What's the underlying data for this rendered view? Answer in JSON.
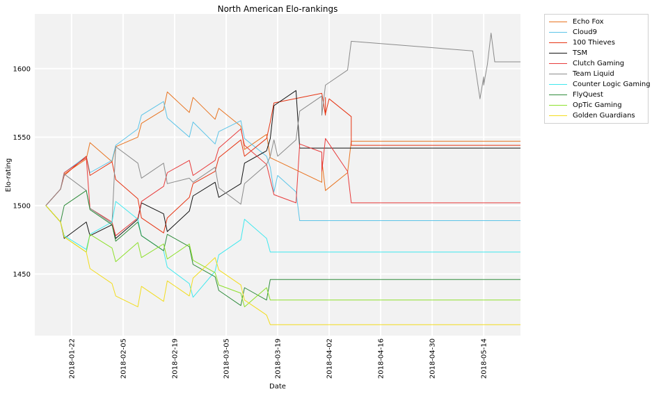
{
  "chart_data": {
    "type": "line",
    "title": "North American Elo-rankings",
    "xlabel": "Date",
    "ylabel": "Elo-rating",
    "x_range": [
      "2018-01-12",
      "2018-05-24"
    ],
    "ylim": [
      1405,
      1640
    ],
    "x_ticks": [
      "2018-01-22",
      "2018-02-05",
      "2018-02-19",
      "2018-03-05",
      "2018-03-19",
      "2018-04-02",
      "2018-04-16",
      "2018-04-30",
      "2018-05-14"
    ],
    "y_ticks": [
      1450,
      1500,
      1550,
      1600
    ],
    "grid": true,
    "legend_position": "outside-top-right",
    "series": [
      {
        "name": "Echo Fox",
        "color": "#e8731f",
        "points": [
          [
            "2018-01-15",
            1500
          ],
          [
            "2018-01-19",
            1512
          ],
          [
            "2018-01-20",
            1523
          ],
          [
            "2018-01-26",
            1534
          ],
          [
            "2018-01-27",
            1546
          ],
          [
            "2018-02-02",
            1532
          ],
          [
            "2018-02-03",
            1543
          ],
          [
            "2018-02-09",
            1550
          ],
          [
            "2018-02-10",
            1560
          ],
          [
            "2018-02-16",
            1570
          ],
          [
            "2018-02-17",
            1583
          ],
          [
            "2018-02-23",
            1568
          ],
          [
            "2018-02-24",
            1579
          ],
          [
            "2018-03-02",
            1563
          ],
          [
            "2018-03-03",
            1571
          ],
          [
            "2018-03-09",
            1558
          ],
          [
            "2018-03-10",
            1541
          ],
          [
            "2018-03-16",
            1552
          ],
          [
            "2018-03-17",
            1535
          ],
          [
            "2018-03-31",
            1517
          ],
          [
            "2018-03-31",
            1533
          ],
          [
            "2018-04-01",
            1511
          ],
          [
            "2018-04-07",
            1524
          ],
          [
            "2018-04-08",
            1547
          ],
          [
            "2018-05-24",
            1547
          ]
        ]
      },
      {
        "name": "Cloud9",
        "color": "#5bc4e8",
        "points": [
          [
            "2018-01-15",
            1500
          ],
          [
            "2018-01-19",
            1512
          ],
          [
            "2018-01-20",
            1524
          ],
          [
            "2018-01-26",
            1536
          ],
          [
            "2018-01-27",
            1524
          ],
          [
            "2018-02-02",
            1533
          ],
          [
            "2018-02-03",
            1544
          ],
          [
            "2018-02-09",
            1556
          ],
          [
            "2018-02-10",
            1566
          ],
          [
            "2018-02-16",
            1576
          ],
          [
            "2018-02-17",
            1564
          ],
          [
            "2018-02-23",
            1550
          ],
          [
            "2018-02-24",
            1561
          ],
          [
            "2018-03-02",
            1545
          ],
          [
            "2018-03-03",
            1554
          ],
          [
            "2018-03-09",
            1562
          ],
          [
            "2018-03-10",
            1549
          ],
          [
            "2018-03-16",
            1536
          ],
          [
            "2018-03-17",
            1528
          ],
          [
            "2018-03-18",
            1510
          ],
          [
            "2018-03-19",
            1522
          ],
          [
            "2018-03-24",
            1510
          ],
          [
            "2018-03-25",
            1489
          ],
          [
            "2018-05-24",
            1489
          ]
        ]
      },
      {
        "name": "100 Thieves",
        "color": "#e63312",
        "points": [
          [
            "2018-01-15",
            1500
          ],
          [
            "2018-01-19",
            1512
          ],
          [
            "2018-01-20",
            1522
          ],
          [
            "2018-01-26",
            1536
          ],
          [
            "2018-01-27",
            1522
          ],
          [
            "2018-02-02",
            1532
          ],
          [
            "2018-02-03",
            1519
          ],
          [
            "2018-02-09",
            1505
          ],
          [
            "2018-02-10",
            1491
          ],
          [
            "2018-02-16",
            1480
          ],
          [
            "2018-02-17",
            1491
          ],
          [
            "2018-02-23",
            1506
          ],
          [
            "2018-02-24",
            1516
          ],
          [
            "2018-03-02",
            1525
          ],
          [
            "2018-03-03",
            1535
          ],
          [
            "2018-03-09",
            1548
          ],
          [
            "2018-03-10",
            1536
          ],
          [
            "2018-03-16",
            1549
          ],
          [
            "2018-03-17",
            1561
          ],
          [
            "2018-03-18",
            1575
          ],
          [
            "2018-03-31",
            1582
          ],
          [
            "2018-04-01",
            1566
          ],
          [
            "2018-04-01",
            1579
          ],
          [
            "2018-04-01",
            1567
          ],
          [
            "2018-04-02",
            1578
          ],
          [
            "2018-04-08",
            1565
          ],
          [
            "2018-04-08",
            1544
          ],
          [
            "2018-05-24",
            1544
          ]
        ]
      },
      {
        "name": "TSM",
        "color": "#111111",
        "points": [
          [
            "2018-01-15",
            1500
          ],
          [
            "2018-01-19",
            1488
          ],
          [
            "2018-01-20",
            1476
          ],
          [
            "2018-01-26",
            1488
          ],
          [
            "2018-01-27",
            1478
          ],
          [
            "2018-02-02",
            1486
          ],
          [
            "2018-02-03",
            1476
          ],
          [
            "2018-02-09",
            1490
          ],
          [
            "2018-02-10",
            1502
          ],
          [
            "2018-02-16",
            1494
          ],
          [
            "2018-02-17",
            1481
          ],
          [
            "2018-02-23",
            1496
          ],
          [
            "2018-02-24",
            1507
          ],
          [
            "2018-03-02",
            1517
          ],
          [
            "2018-03-03",
            1506
          ],
          [
            "2018-03-09",
            1516
          ],
          [
            "2018-03-10",
            1531
          ],
          [
            "2018-03-16",
            1540
          ],
          [
            "2018-03-17",
            1549
          ],
          [
            "2018-03-18",
            1573
          ],
          [
            "2018-03-24",
            1584
          ],
          [
            "2018-03-25",
            1542
          ],
          [
            "2018-05-24",
            1542
          ]
        ]
      },
      {
        "name": "Clutch Gaming",
        "color": "#e83a3a",
        "points": [
          [
            "2018-01-15",
            1500
          ],
          [
            "2018-01-19",
            1512
          ],
          [
            "2018-01-20",
            1524
          ],
          [
            "2018-01-26",
            1535
          ],
          [
            "2018-01-27",
            1498
          ],
          [
            "2018-02-02",
            1488
          ],
          [
            "2018-02-03",
            1478
          ],
          [
            "2018-02-09",
            1491
          ],
          [
            "2018-02-10",
            1503
          ],
          [
            "2018-02-16",
            1514
          ],
          [
            "2018-02-17",
            1524
          ],
          [
            "2018-02-23",
            1533
          ],
          [
            "2018-02-24",
            1522
          ],
          [
            "2018-03-02",
            1533
          ],
          [
            "2018-03-03",
            1542
          ],
          [
            "2018-03-09",
            1556
          ],
          [
            "2018-03-10",
            1544
          ],
          [
            "2018-03-16",
            1530
          ],
          [
            "2018-03-17",
            1519
          ],
          [
            "2018-03-18",
            1508
          ],
          [
            "2018-03-24",
            1502
          ],
          [
            "2018-03-25",
            1545
          ],
          [
            "2018-03-31",
            1539
          ],
          [
            "2018-03-31",
            1525
          ],
          [
            "2018-04-01",
            1549
          ],
          [
            "2018-04-07",
            1525
          ],
          [
            "2018-04-08",
            1502
          ],
          [
            "2018-05-24",
            1502
          ]
        ]
      },
      {
        "name": "Team Liquid",
        "color": "#8a8a8a",
        "points": [
          [
            "2018-01-15",
            1500
          ],
          [
            "2018-01-19",
            1512
          ],
          [
            "2018-01-20",
            1523
          ],
          [
            "2018-01-26",
            1511
          ],
          [
            "2018-01-27",
            1498
          ],
          [
            "2018-02-02",
            1487
          ],
          [
            "2018-02-03",
            1543
          ],
          [
            "2018-02-09",
            1531
          ],
          [
            "2018-02-10",
            1520
          ],
          [
            "2018-02-16",
            1531
          ],
          [
            "2018-02-17",
            1516
          ],
          [
            "2018-02-23",
            1520
          ],
          [
            "2018-02-24",
            1517
          ],
          [
            "2018-03-02",
            1528
          ],
          [
            "2018-03-03",
            1513
          ],
          [
            "2018-03-09",
            1501
          ],
          [
            "2018-03-10",
            1516
          ],
          [
            "2018-03-16",
            1530
          ],
          [
            "2018-03-17",
            1536
          ],
          [
            "2018-03-18",
            1548
          ],
          [
            "2018-03-19",
            1536
          ],
          [
            "2018-03-24",
            1548
          ],
          [
            "2018-03-25",
            1569
          ],
          [
            "2018-03-31",
            1580
          ],
          [
            "2018-03-31",
            1566
          ],
          [
            "2018-04-01",
            1588
          ],
          [
            "2018-04-07",
            1599
          ],
          [
            "2018-04-08",
            1620
          ],
          [
            "2018-05-11",
            1613
          ],
          [
            "2018-05-12",
            1596
          ],
          [
            "2018-05-13",
            1578
          ],
          [
            "2018-05-14",
            1594
          ],
          [
            "2018-05-14",
            1588
          ],
          [
            "2018-05-15",
            1603
          ],
          [
            "2018-05-16",
            1626
          ],
          [
            "2018-05-17",
            1605
          ],
          [
            "2018-05-24",
            1605
          ]
        ]
      },
      {
        "name": "Counter Logic Gaming",
        "color": "#3ee8ee",
        "points": [
          [
            "2018-01-15",
            1500
          ],
          [
            "2018-01-19",
            1488
          ],
          [
            "2018-01-20",
            1478
          ],
          [
            "2018-01-26",
            1468
          ],
          [
            "2018-01-27",
            1479
          ],
          [
            "2018-02-02",
            1488
          ],
          [
            "2018-02-03",
            1503
          ],
          [
            "2018-02-09",
            1490
          ],
          [
            "2018-02-10",
            1478
          ],
          [
            "2018-02-16",
            1467
          ],
          [
            "2018-02-17",
            1455
          ],
          [
            "2018-02-23",
            1443
          ],
          [
            "2018-02-24",
            1433
          ],
          [
            "2018-03-02",
            1452
          ],
          [
            "2018-03-03",
            1464
          ],
          [
            "2018-03-09",
            1475
          ],
          [
            "2018-03-10",
            1490
          ],
          [
            "2018-03-16",
            1476
          ],
          [
            "2018-03-17",
            1466
          ],
          [
            "2018-05-24",
            1466
          ]
        ]
      },
      {
        "name": "FlyQuest",
        "color": "#2e8b3a",
        "points": [
          [
            "2018-01-15",
            1500
          ],
          [
            "2018-01-19",
            1488
          ],
          [
            "2018-01-20",
            1500
          ],
          [
            "2018-01-26",
            1511
          ],
          [
            "2018-01-27",
            1497
          ],
          [
            "2018-02-02",
            1486
          ],
          [
            "2018-02-03",
            1474
          ],
          [
            "2018-02-09",
            1488
          ],
          [
            "2018-02-10",
            1478
          ],
          [
            "2018-02-16",
            1467
          ],
          [
            "2018-02-17",
            1479
          ],
          [
            "2018-02-23",
            1470
          ],
          [
            "2018-02-24",
            1457
          ],
          [
            "2018-03-02",
            1448
          ],
          [
            "2018-03-03",
            1438
          ],
          [
            "2018-03-09",
            1427
          ],
          [
            "2018-03-10",
            1440
          ],
          [
            "2018-03-16",
            1431
          ],
          [
            "2018-03-17",
            1446
          ],
          [
            "2018-05-24",
            1446
          ]
        ]
      },
      {
        "name": "OpTic Gaming",
        "color": "#8de02a",
        "points": [
          [
            "2018-01-15",
            1500
          ],
          [
            "2018-01-19",
            1488
          ],
          [
            "2018-01-20",
            1477
          ],
          [
            "2018-01-26",
            1466
          ],
          [
            "2018-01-27",
            1479
          ],
          [
            "2018-02-02",
            1469
          ],
          [
            "2018-02-03",
            1459
          ],
          [
            "2018-02-09",
            1473
          ],
          [
            "2018-02-10",
            1462
          ],
          [
            "2018-02-16",
            1472
          ],
          [
            "2018-02-17",
            1461
          ],
          [
            "2018-02-23",
            1472
          ],
          [
            "2018-02-24",
            1460
          ],
          [
            "2018-03-02",
            1451
          ],
          [
            "2018-03-03",
            1442
          ],
          [
            "2018-03-09",
            1436
          ],
          [
            "2018-03-10",
            1426
          ],
          [
            "2018-03-16",
            1440
          ],
          [
            "2018-03-17",
            1431
          ],
          [
            "2018-05-24",
            1431
          ]
        ]
      },
      {
        "name": "Golden Guardians",
        "color": "#f2dc1c",
        "points": [
          [
            "2018-01-15",
            1500
          ],
          [
            "2018-01-19",
            1488
          ],
          [
            "2018-01-20",
            1477
          ],
          [
            "2018-01-26",
            1466
          ],
          [
            "2018-01-27",
            1454
          ],
          [
            "2018-02-02",
            1443
          ],
          [
            "2018-02-03",
            1434
          ],
          [
            "2018-02-09",
            1426
          ],
          [
            "2018-02-10",
            1441
          ],
          [
            "2018-02-16",
            1430
          ],
          [
            "2018-02-17",
            1445
          ],
          [
            "2018-02-23",
            1434
          ],
          [
            "2018-02-24",
            1447
          ],
          [
            "2018-03-02",
            1462
          ],
          [
            "2018-03-03",
            1453
          ],
          [
            "2018-03-09",
            1442
          ],
          [
            "2018-03-10",
            1431
          ],
          [
            "2018-03-16",
            1420
          ],
          [
            "2018-03-17",
            1413
          ],
          [
            "2018-05-24",
            1413
          ]
        ]
      }
    ]
  }
}
